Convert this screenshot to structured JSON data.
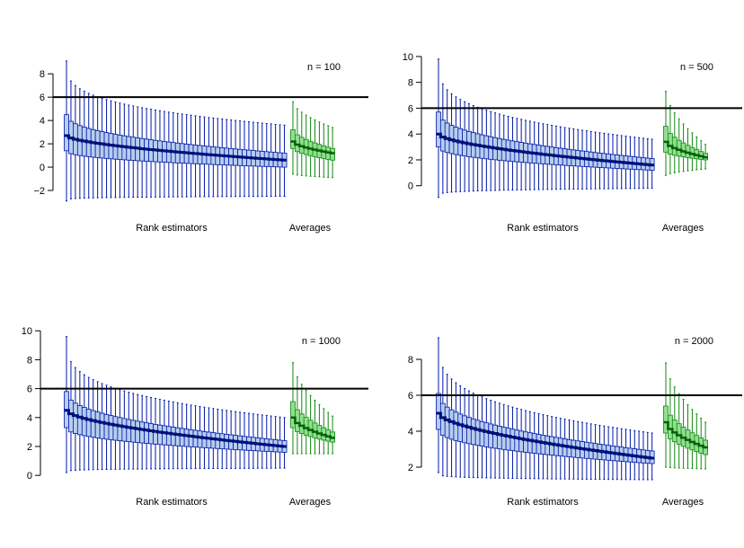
{
  "colors": {
    "rank_fill": "#b7cdee",
    "rank_border": "#0018a8",
    "rank_median": "#00107a",
    "avg_fill": "#8fe08f",
    "avg_border": "#118811",
    "reference_line": "#000000"
  },
  "chart_data": [
    {
      "type": "boxplot",
      "title": "n = 100",
      "group_labels": [
        "Rank estimators",
        "Averages"
      ],
      "ylim": [
        -3,
        9.4
      ],
      "yticks": [
        -2,
        0,
        2,
        4,
        6,
        8
      ],
      "ytick_labels": [
        "−2",
        "0",
        "2",
        "4",
        "6",
        "8"
      ],
      "reference_y": 6,
      "rank_count": 50,
      "rank_median": [
        2.7,
        0.6
      ],
      "rank_median_curve": 0.6,
      "rank_q1": [
        1.4,
        0.0
      ],
      "rank_q3": [
        4.5,
        1.2
      ],
      "rank_q_curve": 0.45,
      "rank_low": [
        -2.9,
        -2.5
      ],
      "rank_low_curve": 0.2,
      "rank_high": [
        9.1,
        3.6
      ],
      "rank_high_curve": 0.3,
      "avg_count": 10,
      "avg_median": [
        2.2,
        1.2
      ],
      "avg_q1": [
        1.6,
        0.6
      ],
      "avg_q3": [
        3.2,
        1.6
      ],
      "avg_low": [
        -0.6,
        -0.9
      ],
      "avg_high": [
        5.6,
        3.4
      ]
    },
    {
      "type": "boxplot",
      "title": "n = 500",
      "group_labels": [
        "Rank estimators",
        "Averages"
      ],
      "ylim": [
        -1.2,
        10.2
      ],
      "yticks": [
        0,
        2,
        4,
        6,
        8,
        10
      ],
      "ytick_labels": [
        "0",
        "2",
        "4",
        "6",
        "8",
        "10"
      ],
      "reference_y": 6,
      "rank_count": 50,
      "rank_median": [
        4.0,
        1.6
      ],
      "rank_median_curve": 0.6,
      "rank_q1": [
        3.0,
        1.2
      ],
      "rank_q3": [
        5.7,
        2.1
      ],
      "rank_q_curve": 0.45,
      "rank_low": [
        -0.9,
        -0.2
      ],
      "rank_low_curve": 0.2,
      "rank_high": [
        9.8,
        3.6
      ],
      "rank_high_curve": 0.3,
      "avg_count": 10,
      "avg_median": [
        3.4,
        2.2
      ],
      "avg_q1": [
        2.6,
        2.0
      ],
      "avg_q3": [
        4.6,
        2.5
      ],
      "avg_low": [
        0.8,
        1.3
      ],
      "avg_high": [
        7.3,
        3.2
      ]
    },
    {
      "type": "boxplot",
      "title": "n = 1000",
      "group_labels": [
        "Rank estimators",
        "Averages"
      ],
      "ylim": [
        -0.3,
        10.2
      ],
      "yticks": [
        0,
        2,
        4,
        6,
        8,
        10
      ],
      "ytick_labels": [
        "0",
        "2",
        "4",
        "6",
        "8",
        "10"
      ],
      "reference_y": 6,
      "rank_count": 50,
      "rank_median": [
        4.5,
        2.0
      ],
      "rank_median_curve": 0.6,
      "rank_q1": [
        3.3,
        1.6
      ],
      "rank_q3": [
        5.8,
        2.4
      ],
      "rank_q_curve": 0.45,
      "rank_low": [
        0.2,
        0.5
      ],
      "rank_low_curve": 0.2,
      "rank_high": [
        9.6,
        4.0
      ],
      "rank_high_curve": 0.3,
      "avg_count": 10,
      "avg_median": [
        4.0,
        2.6
      ],
      "avg_q1": [
        3.3,
        2.3
      ],
      "avg_q3": [
        5.1,
        3.0
      ],
      "avg_low": [
        1.5,
        1.5
      ],
      "avg_high": [
        7.8,
        4.1
      ]
    },
    {
      "type": "boxplot",
      "title": "n = 2000",
      "group_labels": [
        "Rank estimators",
        "Averages"
      ],
      "ylim": [
        1.5,
        9.4
      ],
      "yticks": [
        2,
        4,
        6,
        8
      ],
      "ytick_labels": [
        "2",
        "4",
        "6",
        "8"
      ],
      "reference_y": 6,
      "rank_count": 50,
      "rank_median": [
        5.0,
        2.5
      ],
      "rank_median_curve": 0.6,
      "rank_q1": [
        4.1,
        2.2
      ],
      "rank_q3": [
        6.1,
        2.9
      ],
      "rank_q_curve": 0.45,
      "rank_low": [
        1.7,
        1.3
      ],
      "rank_low_curve": 0.2,
      "rank_high": [
        9.2,
        3.9
      ],
      "rank_high_curve": 0.3,
      "avg_count": 10,
      "avg_median": [
        4.5,
        3.1
      ],
      "avg_q1": [
        3.9,
        2.7
      ],
      "avg_q3": [
        5.4,
        3.5
      ],
      "avg_low": [
        2.0,
        1.9
      ],
      "avg_high": [
        7.8,
        4.5
      ]
    }
  ]
}
